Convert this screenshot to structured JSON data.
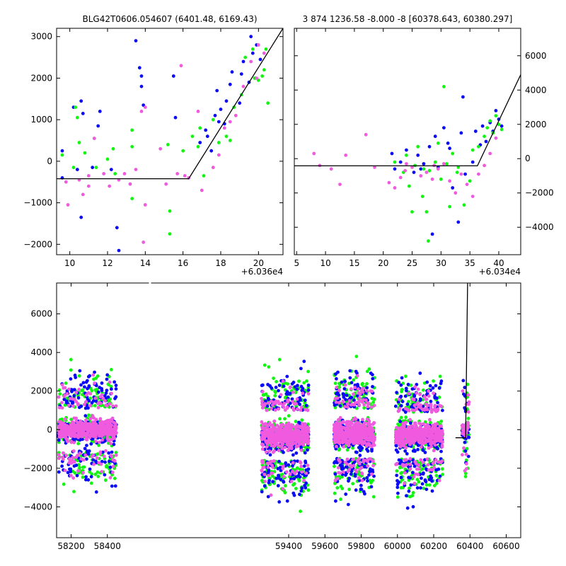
{
  "colors": {
    "blue": "#0a0af5",
    "green": "#11f511",
    "pink": "#f05adf",
    "line": "#000000"
  },
  "chart_data": [
    {
      "id": "top-left",
      "type": "scatter",
      "title": "BLG42T0606.054607 (6401.48, 6169.43)",
      "x_offset_label": "+6.036e4",
      "xlim": [
        9.3,
        21.3
      ],
      "ylim": [
        -2250,
        3200
      ],
      "x_ticks": [
        10,
        12,
        14,
        16,
        18,
        20
      ],
      "x_tick_labels": [
        "10",
        "12",
        "14",
        "16",
        "18",
        "20"
      ],
      "y_ticks": [
        -2000,
        -1000,
        0,
        1000,
        2000,
        3000
      ],
      "y_tick_labels": [
        "−2000",
        "−1000",
        "0",
        "1000",
        "2000",
        "3000"
      ],
      "y_axis_side": "left",
      "model_line": [
        [
          9.3,
          -420
        ],
        [
          16.3,
          -420
        ],
        [
          21.3,
          3200
        ]
      ],
      "series": [
        {
          "color_key": "blue",
          "points": [
            [
              9.6,
              250
            ],
            [
              9.6,
              -400
            ],
            [
              10.2,
              1300
            ],
            [
              10.4,
              -200
            ],
            [
              10.6,
              1450
            ],
            [
              10.6,
              -1350
            ],
            [
              10.7,
              1150
            ],
            [
              11.2,
              -150
            ],
            [
              11.5,
              850
            ],
            [
              11.6,
              1200
            ],
            [
              12.2,
              -200
            ],
            [
              12.5,
              -1600
            ],
            [
              12.6,
              -2150
            ],
            [
              13.5,
              2900
            ],
            [
              13.7,
              2250
            ],
            [
              13.8,
              2050
            ],
            [
              13.8,
              1800
            ],
            [
              13.9,
              1350
            ],
            [
              15.5,
              2050
            ],
            [
              15.6,
              1050
            ],
            [
              17.2,
              750
            ],
            [
              17.3,
              600
            ],
            [
              17.5,
              250
            ],
            [
              17.7,
              1100
            ],
            [
              17.8,
              1700
            ],
            [
              18.0,
              1250
            ],
            [
              18.3,
              1450
            ],
            [
              18.5,
              1850
            ],
            [
              18.6,
              2150
            ],
            [
              19.0,
              1400
            ],
            [
              19.1,
              2100
            ],
            [
              19.5,
              1900
            ],
            [
              19.6,
              3000
            ],
            [
              19.7,
              2600
            ],
            [
              19.9,
              2800
            ],
            [
              20.1,
              2450
            ],
            [
              17.9,
              950
            ],
            [
              18.2,
              900
            ],
            [
              16.9,
              450
            ],
            [
              19.2,
              2400
            ]
          ]
        },
        {
          "color_key": "green",
          "points": [
            [
              9.2,
              600
            ],
            [
              9.6,
              150
            ],
            [
              10.2,
              -150
            ],
            [
              10.3,
              1300
            ],
            [
              10.4,
              1050
            ],
            [
              10.5,
              450
            ],
            [
              10.8,
              200
            ],
            [
              11.3,
              550
            ],
            [
              11.4,
              -150
            ],
            [
              12.0,
              50
            ],
            [
              12.3,
              300
            ],
            [
              12.4,
              -300
            ],
            [
              13.2,
              -550
            ],
            [
              13.3,
              350
            ],
            [
              13.3,
              750
            ],
            [
              13.3,
              -900
            ],
            [
              15.2,
              400
            ],
            [
              15.3,
              -1750
            ],
            [
              15.3,
              -1200
            ],
            [
              16.0,
              250
            ],
            [
              16.5,
              600
            ],
            [
              16.8,
              350
            ],
            [
              16.9,
              800
            ],
            [
              17.1,
              -350
            ],
            [
              17.6,
              1000
            ],
            [
              17.9,
              450
            ],
            [
              18.3,
              600
            ],
            [
              18.7,
              1300
            ],
            [
              19.1,
              1600
            ],
            [
              19.3,
              2500
            ],
            [
              19.7,
              2700
            ],
            [
              20.0,
              1950
            ],
            [
              20.3,
              2200
            ],
            [
              20.4,
              2700
            ],
            [
              20.5,
              1400
            ],
            [
              18.5,
              500
            ],
            [
              19.8,
              2000
            ],
            [
              20.2,
              2050
            ]
          ]
        },
        {
          "color_key": "pink",
          "points": [
            [
              9.8,
              -500
            ],
            [
              9.9,
              -1050
            ],
            [
              10.5,
              -450
            ],
            [
              10.7,
              -800
            ],
            [
              11.0,
              -350
            ],
            [
              11.0,
              -600
            ],
            [
              11.3,
              550
            ],
            [
              11.8,
              -300
            ],
            [
              12.1,
              -600
            ],
            [
              12.6,
              -450
            ],
            [
              12.9,
              -300
            ],
            [
              13.2,
              -550
            ],
            [
              13.5,
              -200
            ],
            [
              13.8,
              1200
            ],
            [
              13.9,
              -1950
            ],
            [
              14.0,
              -1050
            ],
            [
              14.0,
              1300
            ],
            [
              14.8,
              300
            ],
            [
              15.1,
              -550
            ],
            [
              15.7,
              -300
            ],
            [
              15.9,
              2300
            ],
            [
              16.1,
              -350
            ],
            [
              16.3,
              -400
            ],
            [
              16.8,
              1200
            ],
            [
              17.0,
              -700
            ],
            [
              17.6,
              -150
            ],
            [
              17.9,
              150
            ],
            [
              18.2,
              800
            ],
            [
              18.5,
              950
            ],
            [
              19.2,
              1800
            ],
            [
              19.6,
              2400
            ],
            [
              20.0,
              2800
            ],
            [
              20.3,
              2600
            ],
            [
              18.8,
              1100
            ],
            [
              19.9,
              2000
            ]
          ]
        }
      ]
    },
    {
      "id": "top-right",
      "type": "scatter",
      "title": "3 874 1236.58 -8.000 -8 [60378.643, 60380.297]",
      "x_offset_label": "+6.034e4",
      "xlim": [
        4.6,
        43.8
      ],
      "ylim": [
        -5600,
        7600
      ],
      "x_ticks": [
        5,
        10,
        15,
        20,
        25,
        30,
        35,
        40
      ],
      "x_tick_labels": [
        "5",
        "10",
        "15",
        "20",
        "25",
        "30",
        "35",
        "40"
      ],
      "y_ticks": [
        -4000,
        -2000,
        0,
        2000,
        4000,
        6000
      ],
      "y_tick_labels": [
        "−4000",
        "−2000",
        "0",
        "2000",
        "4000",
        "6000"
      ],
      "y_axis_side": "right",
      "model_line": [
        [
          4.6,
          -420
        ],
        [
          36.3,
          -420
        ],
        [
          43.8,
          4900
        ]
      ],
      "series": [
        {
          "color_key": "blue",
          "points": [
            [
              21.5,
              300
            ],
            [
              22.0,
              -600
            ],
            [
              23.0,
              -200
            ],
            [
              24.0,
              500
            ],
            [
              25.3,
              -800
            ],
            [
              26.0,
              200
            ],
            [
              27.0,
              -300
            ],
            [
              28.0,
              700
            ],
            [
              29.0,
              1300
            ],
            [
              29.5,
              -500
            ],
            [
              30.5,
              1800
            ],
            [
              31.2,
              900
            ],
            [
              32.0,
              -1700
            ],
            [
              33.0,
              -3700
            ],
            [
              33.5,
              1500
            ],
            [
              33.8,
              3600
            ],
            [
              34.2,
              -900
            ],
            [
              35.5,
              -200
            ],
            [
              36.0,
              1600
            ],
            [
              36.8,
              800
            ],
            [
              37.2,
              1900
            ],
            [
              37.8,
              1000
            ],
            [
              38.5,
              2100
            ],
            [
              39.0,
              1600
            ],
            [
              39.5,
              2800
            ],
            [
              40.0,
              2300
            ],
            [
              40.5,
              1900
            ],
            [
              28.5,
              -4400
            ],
            [
              31.5,
              600
            ],
            [
              26.5,
              -600
            ]
          ]
        },
        {
          "color_key": "green",
          "points": [
            [
              22.0,
              -200
            ],
            [
              23.5,
              -800
            ],
            [
              24.0,
              200
            ],
            [
              25.0,
              -3100
            ],
            [
              25.5,
              -400
            ],
            [
              26.0,
              700
            ],
            [
              27.0,
              -600
            ],
            [
              27.5,
              -3100
            ],
            [
              28.0,
              -700
            ],
            [
              29.0,
              -200
            ],
            [
              29.5,
              900
            ],
            [
              30.0,
              -1200
            ],
            [
              30.5,
              4200
            ],
            [
              31.0,
              -300
            ],
            [
              31.5,
              -2800
            ],
            [
              32.0,
              300
            ],
            [
              33.0,
              -500
            ],
            [
              34.0,
              -2700
            ],
            [
              35.0,
              -1300
            ],
            [
              35.5,
              500
            ],
            [
              36.5,
              700
            ],
            [
              37.5,
              1300
            ],
            [
              38.0,
              1800
            ],
            [
              38.5,
              2200
            ],
            [
              39.0,
              1500
            ],
            [
              39.5,
              2500
            ],
            [
              40.0,
              2000
            ],
            [
              40.5,
              1700
            ],
            [
              27.8,
              -4800
            ],
            [
              26.8,
              -2200
            ],
            [
              32.8,
              -800
            ],
            [
              24.5,
              -1600
            ]
          ]
        },
        {
          "color_key": "pink",
          "points": [
            [
              8.0,
              300
            ],
            [
              9.0,
              -400
            ],
            [
              11.0,
              -600
            ],
            [
              12.5,
              -1500
            ],
            [
              13.5,
              200
            ],
            [
              17.0,
              1400
            ],
            [
              18.5,
              -500
            ],
            [
              21.0,
              -1400
            ],
            [
              22.0,
              -1700
            ],
            [
              23.0,
              -1100
            ],
            [
              24.0,
              -300
            ],
            [
              25.0,
              -500
            ],
            [
              26.5,
              -1000
            ],
            [
              27.5,
              -800
            ],
            [
              28.5,
              -1200
            ],
            [
              29.5,
              -600
            ],
            [
              30.5,
              -300
            ],
            [
              31.5,
              -1300
            ],
            [
              32.5,
              -2000
            ],
            [
              33.5,
              -900
            ],
            [
              34.5,
              -1500
            ],
            [
              35.5,
              -2200
            ],
            [
              36.5,
              -900
            ],
            [
              37.5,
              -400
            ],
            [
              38.5,
              300
            ],
            [
              39.5,
              1200
            ],
            [
              23.8,
              -700
            ],
            [
              28.8,
              -400
            ]
          ]
        }
      ]
    },
    {
      "id": "bottom",
      "type": "scatter",
      "title": "",
      "xlim": [
        58120,
        60680
      ],
      "ylim": [
        -5600,
        7600
      ],
      "x_ticks": [
        58200,
        58400,
        59400,
        59600,
        59800,
        60000,
        60200,
        60400,
        60600
      ],
      "x_tick_labels": [
        "58200",
        "58400",
        "59400",
        "59600",
        "59800",
        "60000",
        "60200",
        "60400",
        "60600"
      ],
      "y_ticks": [
        -4000,
        -2000,
        0,
        2000,
        4000,
        6000
      ],
      "y_tick_labels": [
        "−4000",
        "−2000",
        "0",
        "2000",
        "4000",
        "6000"
      ],
      "y_axis_side": "left",
      "axis_break_between": [
        58470,
        59220
      ],
      "model_line": [
        [
          60320,
          -420
        ],
        [
          60376,
          -420
        ],
        [
          60387,
          7600
        ]
      ],
      "seasons": [
        {
          "x_range": [
            58130,
            58450
          ],
          "dense_center": 0,
          "dense_halfheight": 1100
        },
        {
          "x_range": [
            59250,
            59510
          ],
          "dense_center": -300,
          "dense_halfheight": 1300
        },
        {
          "x_range": [
            59650,
            59875
          ],
          "dense_center": -200,
          "dense_halfheight": 1300
        },
        {
          "x_range": [
            59990,
            60250
          ],
          "dense_center": -300,
          "dense_halfheight": 1200
        },
        {
          "x_range": [
            60355,
            60395
          ],
          "dense_center": 0,
          "dense_halfheight": 900
        }
      ]
    }
  ]
}
